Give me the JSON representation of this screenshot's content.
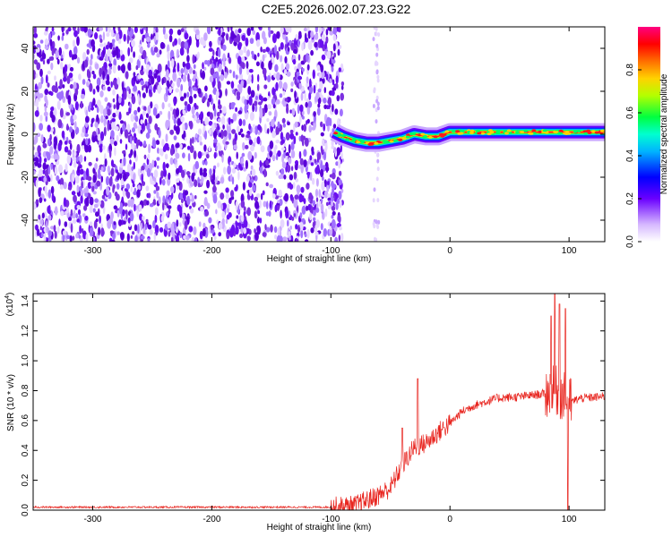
{
  "title": "C2E5.2026.002.07.23.G22",
  "chart_data": [
    {
      "type": "heatmap",
      "name": "spectrogram",
      "xlabel": "Height of straight line (km)",
      "ylabel": "Frequency (Hz)",
      "xlim": [
        -350,
        130
      ],
      "ylim": [
        -50,
        50
      ],
      "xticks": [
        -300,
        -200,
        -100,
        0,
        100
      ],
      "yticks": [
        -40,
        -20,
        0,
        20,
        40
      ],
      "noise_region_x": [
        -350,
        -90
      ],
      "sparse_column_x": -62,
      "ridge": {
        "x": [
          -97,
          -90,
          -80,
          -70,
          -60,
          -50,
          -40,
          -30,
          -20,
          -10,
          0,
          10,
          20,
          40,
          60,
          80,
          95,
          100,
          130
        ],
        "y": [
          1,
          -1,
          -3,
          -4,
          -4,
          -3,
          -2,
          0,
          -1,
          -1,
          1,
          1,
          1,
          1,
          1,
          1,
          1,
          1,
          1
        ]
      },
      "colorbar": {
        "label": "Normalized spectral amplitude",
        "range": [
          0,
          1
        ],
        "ticks": [
          "0.0",
          "0.2",
          "0.4",
          "0.6",
          "0.8"
        ]
      }
    },
    {
      "type": "line",
      "name": "snr",
      "xlabel": "Height of straight line (km)",
      "ylabel": "SNR (10 * v/v)",
      "scale_label": "(x10",
      "scale_exp": "4",
      "scale_close": ")",
      "xlim": [
        -350,
        130
      ],
      "ylim": [
        0,
        1.45
      ],
      "xticks": [
        -300,
        -200,
        -100,
        0,
        100
      ],
      "yticks": [
        "0.0",
        "0.2",
        "0.4",
        "0.6",
        "0.8",
        "1.0",
        "1.2",
        "1.4"
      ],
      "series": [
        {
          "name": "SNR",
          "color": "#e8241e",
          "trend": {
            "x": [
              -350,
              -100,
              -80,
              -60,
              -50,
              -40,
              -30,
              -20,
              -10,
              0,
              10,
              20,
              40,
              60,
              80,
              90,
              100,
              110,
              130
            ],
            "y": [
              0.02,
              0.02,
              0.03,
              0.1,
              0.15,
              0.3,
              0.42,
              0.45,
              0.52,
              0.58,
              0.66,
              0.7,
              0.75,
              0.76,
              0.78,
              0.8,
              0.72,
              0.75,
              0.76
            ]
          },
          "spikes": [
            {
              "x": -27,
              "y": 0.88
            },
            {
              "x": -40,
              "y": 0.55
            },
            {
              "x": 85,
              "y": 1.3
            },
            {
              "x": 88,
              "y": 1.45
            },
            {
              "x": 92,
              "y": 1.38
            },
            {
              "x": 97,
              "y": 1.35
            },
            {
              "x": 99,
              "y": 0.0
            }
          ]
        }
      ]
    }
  ],
  "colors": {
    "ridge_core": "#e8241e",
    "noise": "#7b2fe0",
    "line": "#e8241e"
  }
}
